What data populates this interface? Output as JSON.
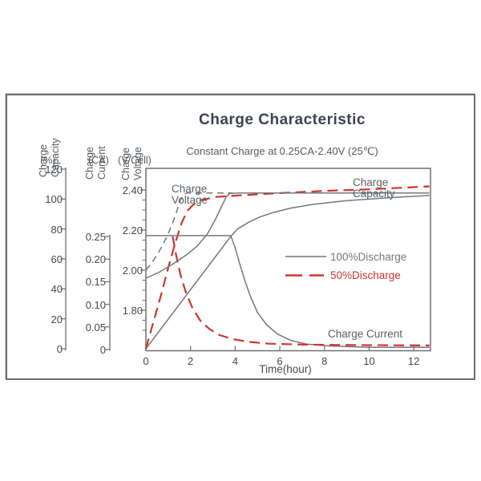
{
  "chart_data": {
    "type": "line",
    "title": "Charge Characteristic",
    "subtitle": "Constant Charge at 0.25CA-2.40V  (25℃)",
    "x_axis": {
      "label": "Time(hour)",
      "range": [
        0,
        12.75
      ],
      "ticks": [
        {
          "label": "0",
          "value": 0
        },
        {
          "label": "2",
          "value": 2
        },
        {
          "label": "4",
          "value": 4
        },
        {
          "label": "6",
          "value": 6
        },
        {
          "label": "8",
          "value": 8
        },
        {
          "label": "10",
          "value": 10
        },
        {
          "label": "12",
          "value": 12
        }
      ]
    },
    "y_axes": [
      {
        "id": "capacity",
        "name_line1": "Charge",
        "name_line2": "Capacity",
        "unit": "(%)",
        "range": [
          0,
          120
        ],
        "ticks": [
          {
            "label": "120",
            "value": 120
          },
          {
            "label": "100",
            "value": 100
          },
          {
            "label": "80",
            "value": 80
          },
          {
            "label": "60",
            "value": 60
          },
          {
            "label": "40",
            "value": 40
          },
          {
            "label": "20",
            "value": 20
          },
          {
            "label": "0",
            "value": 0
          }
        ]
      },
      {
        "id": "current",
        "name_line1": "Charge",
        "name_line2": "Current",
        "unit": "(CA)",
        "range": [
          0,
          0.25
        ],
        "ticks": [
          {
            "label": "0.25",
            "value": 0.25
          },
          {
            "label": "0.20",
            "value": 0.2
          },
          {
            "label": "0.15",
            "value": 0.15
          },
          {
            "label": "0.10",
            "value": 0.1
          },
          {
            "label": "0.05",
            "value": 0.05
          },
          {
            "label": "0",
            "value": 0
          }
        ]
      },
      {
        "id": "voltage",
        "name_line1": "Charge",
        "name_line2": "Voltage",
        "unit": "(V/Cell)",
        "range": [
          1.7,
          2.4
        ],
        "ticks": [
          {
            "label": "2.40",
            "value": 2.4
          },
          {
            "label": "2.20",
            "value": 2.2
          },
          {
            "label": "2.00",
            "value": 2.0
          },
          {
            "label": "1.80",
            "value": 1.8
          }
        ],
        "minor_ticks": [
          2.35,
          2.3,
          2.25,
          2.15,
          2.1,
          2.05,
          1.95,
          1.9,
          1.85,
          1.75,
          1.7
        ]
      }
    ],
    "curve_labels": {
      "voltage_line1": "Charge",
      "voltage_line2": "Voltage",
      "capacity_line1": "Charge",
      "capacity_line2": "Capacity",
      "current": "Charge Current"
    },
    "legend": [
      {
        "label": "100%Discharge",
        "color": "#74777b",
        "style": "solid"
      },
      {
        "label": "50%Discharge",
        "color": "#cf332e",
        "style": "dashed"
      }
    ],
    "colors": {
      "gray_line": "#74777b",
      "red_line": "#cf332e",
      "axis": "#6b6e73"
    },
    "series": [
      {
        "name": "charge-capacity-100pct",
        "axis": "capacity",
        "discharge": "100%",
        "style": "solid",
        "points": [
          [
            0,
            0
          ],
          [
            3.8,
            75
          ],
          [
            4.1,
            80
          ],
          [
            4.6,
            84.5
          ],
          [
            5.1,
            88
          ],
          [
            5.7,
            91
          ],
          [
            6.5,
            94
          ],
          [
            7.5,
            96.5
          ],
          [
            9,
            99
          ],
          [
            10.5,
            100.5
          ],
          [
            12.7,
            102.5
          ]
        ]
      },
      {
        "name": "charge-capacity-50pct",
        "axis": "capacity",
        "discharge": "50%",
        "style": "dashed",
        "points": [
          [
            0,
            0
          ],
          [
            0.3,
            16
          ],
          [
            0.7,
            37
          ],
          [
            1.0,
            54
          ],
          [
            1.3,
            70
          ],
          [
            1.6,
            84
          ],
          [
            1.85,
            92
          ],
          [
            2.1,
            96
          ],
          [
            2.5,
            99.5
          ],
          [
            3.2,
            101.5
          ],
          [
            4.2,
            102.5
          ],
          [
            6,
            104
          ],
          [
            8,
            105.5
          ],
          [
            10,
            106.5
          ],
          [
            12.7,
            108.5
          ]
        ]
      },
      {
        "name": "charge-current-100pct",
        "axis": "current",
        "discharge": "100%",
        "style": "solid",
        "points": [
          [
            0,
            0.252
          ],
          [
            3.8,
            0.252
          ],
          [
            4.0,
            0.225
          ],
          [
            4.2,
            0.19
          ],
          [
            4.45,
            0.15
          ],
          [
            4.7,
            0.115
          ],
          [
            5.0,
            0.082
          ],
          [
            5.4,
            0.055
          ],
          [
            5.9,
            0.034
          ],
          [
            6.5,
            0.02
          ],
          [
            7.2,
            0.012
          ],
          [
            8.2,
            0.008
          ],
          [
            10,
            0.005
          ],
          [
            12.7,
            0.005
          ]
        ]
      },
      {
        "name": "charge-current-50pct",
        "axis": "current",
        "discharge": "50%",
        "style": "dashed",
        "points": [
          [
            1.2,
            0.25
          ],
          [
            1.35,
            0.21
          ],
          [
            1.55,
            0.165
          ],
          [
            1.8,
            0.125
          ],
          [
            2.1,
            0.09
          ],
          [
            2.45,
            0.063
          ],
          [
            2.85,
            0.045
          ],
          [
            3.3,
            0.032
          ],
          [
            3.9,
            0.023
          ],
          [
            4.6,
            0.017
          ],
          [
            5.5,
            0.013
          ],
          [
            7,
            0.011
          ],
          [
            9,
            0.01
          ],
          [
            12.7,
            0.009
          ]
        ]
      },
      {
        "name": "charge-voltage-100pct",
        "axis": "voltage",
        "discharge": "100%",
        "style": "solid",
        "points": [
          [
            0,
            1.96
          ],
          [
            0.6,
            1.99
          ],
          [
            1.2,
            2.03
          ],
          [
            1.8,
            2.075
          ],
          [
            2.3,
            2.12
          ],
          [
            2.75,
            2.18
          ],
          [
            3.1,
            2.25
          ],
          [
            3.4,
            2.32
          ],
          [
            3.6,
            2.365
          ],
          [
            3.75,
            2.383
          ],
          [
            4.2,
            2.385
          ],
          [
            12.7,
            2.385
          ]
        ]
      },
      {
        "name": "charge-voltage-50pct",
        "axis": "voltage",
        "discharge": "50%",
        "style": "dashed-gray",
        "points": [
          [
            0,
            2.0
          ],
          [
            0.35,
            2.05
          ],
          [
            0.65,
            2.105
          ],
          [
            0.95,
            2.17
          ],
          [
            1.2,
            2.235
          ],
          [
            1.4,
            2.3
          ],
          [
            1.55,
            2.35
          ],
          [
            1.7,
            2.38
          ],
          [
            1.85,
            2.385
          ],
          [
            3.9,
            2.385
          ]
        ]
      }
    ]
  }
}
